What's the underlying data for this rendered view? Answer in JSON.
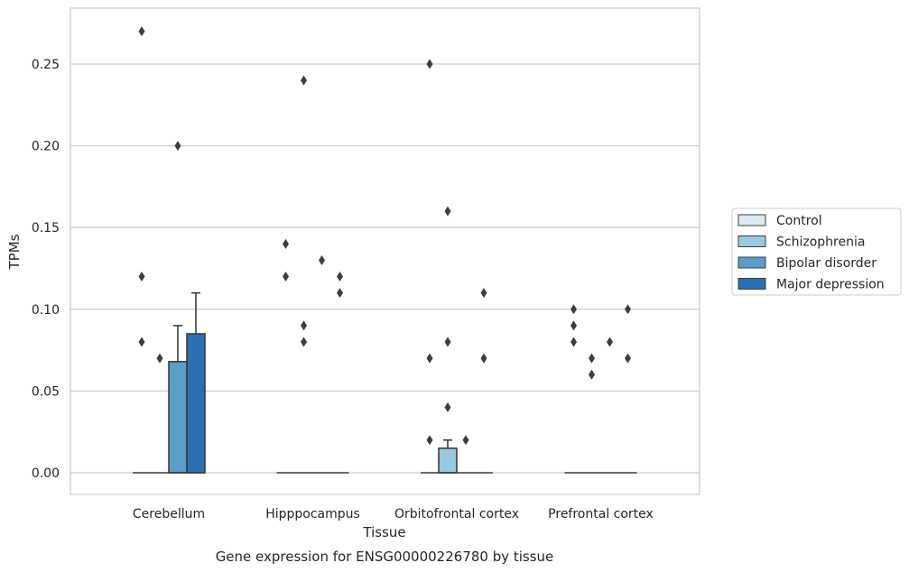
{
  "chart_data": {
    "type": "box",
    "title": "",
    "caption": "Gene expression for ENSG00000226780 by tissue",
    "xlabel": "Tissue",
    "ylabel": "TPMs",
    "ylim": [
      -0.013,
      0.284
    ],
    "yticks": [
      0.0,
      0.05,
      0.1,
      0.15,
      0.2,
      0.25
    ],
    "ytick_labels": [
      "0.00",
      "0.05",
      "0.10",
      "0.15",
      "0.20",
      "0.25"
    ],
    "grid": "horizontal",
    "legend_placement": "right",
    "categories": [
      "Cerebellum",
      "Hipppocampus",
      "Orbitofrontal cortex",
      "Prefrontal cortex"
    ],
    "series": [
      {
        "name": "Control",
        "color": "#dbe9f6",
        "boxes": [
          {
            "q1": 0,
            "median": 0,
            "q3": 0,
            "whisker_low": 0,
            "whisker_high": 0,
            "outliers": [
              0.27,
              0.12,
              0.08
            ]
          },
          {
            "q1": 0,
            "median": 0,
            "q3": 0,
            "whisker_low": 0,
            "whisker_high": 0,
            "outliers": [
              0.14,
              0.12
            ]
          },
          {
            "q1": 0,
            "median": 0,
            "q3": 0,
            "whisker_low": 0,
            "whisker_high": 0,
            "outliers": [
              0.25,
              0.07,
              0.02
            ]
          },
          {
            "q1": 0,
            "median": 0,
            "q3": 0,
            "whisker_low": 0,
            "whisker_high": 0,
            "outliers": [
              0.1,
              0.09,
              0.08
            ]
          }
        ]
      },
      {
        "name": "Schizophrenia",
        "color": "#9ac8e0",
        "boxes": [
          {
            "q1": 0,
            "median": 0,
            "q3": 0,
            "whisker_low": 0,
            "whisker_high": 0,
            "outliers": [
              0.07
            ]
          },
          {
            "q1": 0,
            "median": 0,
            "q3": 0,
            "whisker_low": 0,
            "whisker_high": 0,
            "outliers": [
              0.24,
              0.09,
              0.08
            ]
          },
          {
            "q1": 0,
            "median": 0,
            "q3": 0.015,
            "whisker_low": 0,
            "whisker_high": 0.02,
            "outliers": [
              0.16,
              0.08,
              0.04
            ]
          },
          {
            "q1": 0,
            "median": 0,
            "q3": 0,
            "whisker_low": 0,
            "whisker_high": 0,
            "outliers": [
              0.07,
              0.06
            ]
          }
        ]
      },
      {
        "name": "Bipolar disorder",
        "color": "#5a9ec9",
        "boxes": [
          {
            "q1": 0,
            "median": 0,
            "q3": 0.068,
            "whisker_low": 0,
            "whisker_high": 0.09,
            "outliers": [
              0.2
            ]
          },
          {
            "q1": 0,
            "median": 0,
            "q3": 0,
            "whisker_low": 0,
            "whisker_high": 0,
            "outliers": [
              0.13
            ]
          },
          {
            "q1": 0,
            "median": 0,
            "q3": 0,
            "whisker_low": 0,
            "whisker_high": 0,
            "outliers": [
              0.02
            ]
          },
          {
            "q1": 0,
            "median": 0,
            "q3": 0,
            "whisker_low": 0,
            "whisker_high": 0,
            "outliers": [
              0.08
            ]
          }
        ]
      },
      {
        "name": "Major depression",
        "color": "#2b6fb0",
        "boxes": [
          {
            "q1": 0,
            "median": 0,
            "q3": 0.085,
            "whisker_low": 0,
            "whisker_high": 0.11,
            "outliers": []
          },
          {
            "q1": 0,
            "median": 0,
            "q3": 0,
            "whisker_low": 0,
            "whisker_high": 0,
            "outliers": [
              0.12,
              0.11
            ]
          },
          {
            "q1": 0,
            "median": 0,
            "q3": 0,
            "whisker_low": 0,
            "whisker_high": 0,
            "outliers": [
              0.11,
              0.07
            ]
          },
          {
            "q1": 0,
            "median": 0,
            "q3": 0,
            "whisker_low": 0,
            "whisker_high": 0,
            "outliers": [
              0.1,
              0.07
            ]
          }
        ]
      }
    ]
  }
}
